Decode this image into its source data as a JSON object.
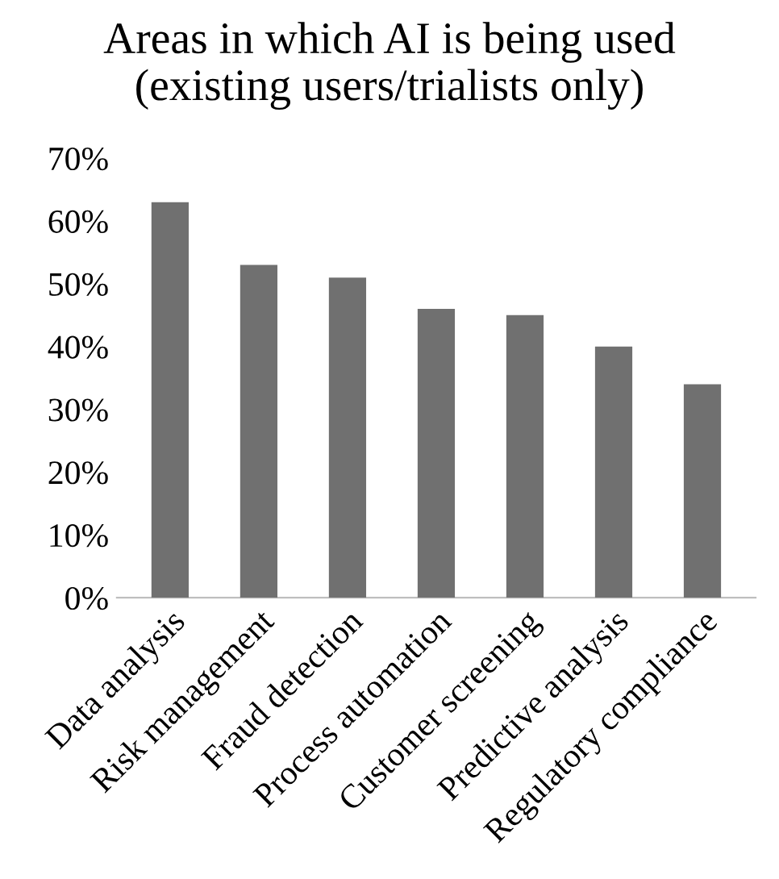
{
  "chart_data": {
    "type": "bar",
    "title": "Areas in which AI is being used\n(existing users/trialists only)",
    "categories": [
      "Data analysis",
      "Risk management",
      "Fraud detection",
      "Process automation",
      "Customer screening",
      "Predictive analysis",
      "Regulatory compliance"
    ],
    "values": [
      63,
      53,
      51,
      46,
      45,
      40,
      34
    ],
    "color": "#707070",
    "ylim": [
      0,
      70
    ],
    "yticks": [
      {
        "value": 0,
        "label": "0%"
      },
      {
        "value": 10,
        "label": "10%"
      },
      {
        "value": 20,
        "label": "20%"
      },
      {
        "value": 30,
        "label": "30%"
      },
      {
        "value": 40,
        "label": "40%"
      },
      {
        "value": 50,
        "label": "50%"
      },
      {
        "value": 60,
        "label": "60%"
      },
      {
        "value": 70,
        "label": "70%"
      }
    ],
    "grid": false
  }
}
